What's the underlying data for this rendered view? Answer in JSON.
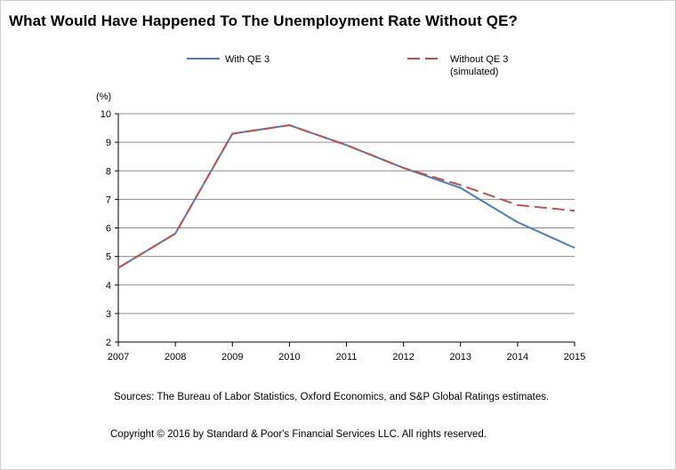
{
  "title": "What Would Have Happened To The Unemployment Rate Without QE?",
  "sources": "Sources: The Bureau of Labor Statistics, Oxford Economics, and S&P Global Ratings estimates.",
  "copyright": "Copyright © 2016 by Standard & Poor's Financial Services LLC. All rights reserved.",
  "colors": {
    "with_qe3": "#4a7ebb",
    "without_qe3": "#c0504d",
    "grid": "#8c8c8c"
  },
  "chart_data": {
    "type": "line",
    "unit_label": "(%)",
    "x": [
      "2007",
      "2008",
      "2009",
      "2010",
      "2011",
      "2012",
      "2013",
      "2014",
      "2015"
    ],
    "ylim": [
      2,
      10
    ],
    "yticks": [
      2,
      3,
      4,
      5,
      6,
      7,
      8,
      9,
      10
    ],
    "grid": true,
    "legend_position": "top",
    "series": [
      {
        "name": "With QE 3",
        "style": "solid",
        "values": [
          4.6,
          5.8,
          9.3,
          9.6,
          8.9,
          8.1,
          7.4,
          6.2,
          5.3
        ]
      },
      {
        "name": "Without QE 3",
        "name_line2": "(simulated)",
        "style": "dashed",
        "values": [
          4.6,
          5.8,
          9.3,
          9.6,
          8.9,
          8.1,
          7.5,
          6.8,
          6.6
        ]
      }
    ]
  }
}
